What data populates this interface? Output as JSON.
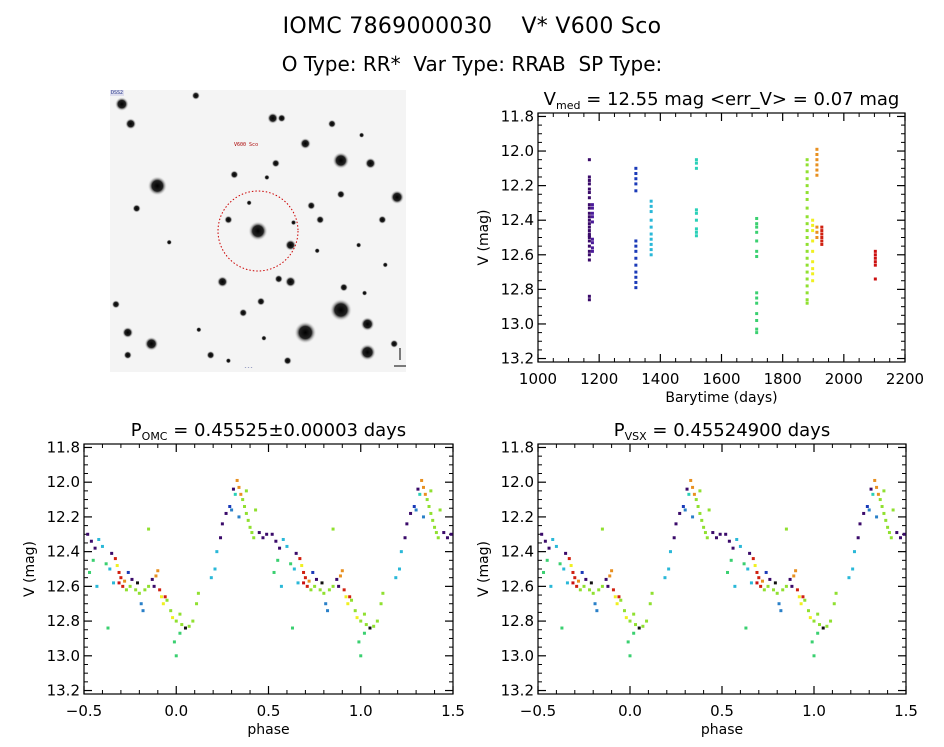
{
  "header": {
    "line1": {
      "catalog_id": "IOMC 7869000030",
      "star_name": "V* V600 Sco"
    },
    "line2": {
      "otype": "O Type: RR*",
      "vartype": "Var Type: RRAB",
      "sptype": "SP Type:"
    }
  },
  "finder_chart": {
    "description": "Sky image centered on target with dashed aperture circle",
    "circle_color": "#cc0000",
    "stars": [
      [
        0.5,
        0.5,
        7
      ],
      [
        0.16,
        0.34,
        7
      ],
      [
        0.78,
        0.78,
        8
      ],
      [
        0.66,
        0.86,
        8
      ],
      [
        0.87,
        0.93,
        6
      ],
      [
        0.78,
        0.25,
        6
      ],
      [
        0.87,
        0.83,
        5
      ],
      [
        0.14,
        0.9,
        5
      ],
      [
        0.04,
        0.05,
        5
      ],
      [
        0.55,
        0.1,
        4
      ],
      [
        0.66,
        0.19,
        4
      ],
      [
        0.88,
        0.26,
        4
      ],
      [
        0.61,
        0.55,
        4
      ],
      [
        0.61,
        0.68,
        4
      ],
      [
        0.38,
        0.68,
        4
      ],
      [
        0.57,
        0.67,
        3
      ],
      [
        0.4,
        0.46,
        3
      ],
      [
        0.07,
        0.12,
        4
      ],
      [
        0.29,
        0.02,
        3
      ],
      [
        0.75,
        0.12,
        3
      ],
      [
        0.42,
        0.3,
        3
      ],
      [
        0.68,
        0.41,
        3
      ],
      [
        0.78,
        0.37,
        3
      ],
      [
        0.92,
        0.46,
        3
      ],
      [
        0.79,
        0.7,
        3
      ],
      [
        0.97,
        0.38,
        5
      ],
      [
        0.09,
        0.42,
        3
      ],
      [
        0.06,
        0.94,
        3
      ],
      [
        0.34,
        0.94,
        3
      ],
      [
        0.51,
        0.75,
        3
      ],
      [
        0.45,
        0.79,
        3
      ],
      [
        0.02,
        0.76,
        3
      ],
      [
        0.06,
        0.86,
        4
      ],
      [
        0.96,
        0.9,
        3
      ],
      [
        0.71,
        0.46,
        3
      ],
      [
        0.56,
        0.26,
        3
      ],
      [
        0.53,
        0.31,
        2
      ],
      [
        0.58,
        0.1,
        3
      ],
      [
        0.47,
        0.4,
        2
      ],
      [
        0.62,
        0.47,
        2
      ],
      [
        0.7,
        0.57,
        2
      ],
      [
        0.85,
        0.16,
        2
      ],
      [
        0.84,
        0.55,
        2
      ],
      [
        0.86,
        0.72,
        2
      ],
      [
        0.3,
        0.85,
        2
      ],
      [
        0.4,
        0.96,
        2
      ],
      [
        0.6,
        0.96,
        3
      ],
      [
        0.52,
        0.88,
        2
      ],
      [
        0.93,
        0.62,
        2
      ],
      [
        0.2,
        0.54,
        2
      ]
    ],
    "labels": [
      "corner-label-top-left",
      "target-label",
      "corner-label-bottom-left",
      "scale-label-bottom",
      "orientation-label"
    ]
  },
  "chart_data": [
    {
      "type": "scatter",
      "id": "lightcurve",
      "title": "V_med = 12.55 mag <err_V> = 0.07 mag",
      "title_main": "V",
      "title_sub": "med",
      "title_rest": " = 12.55 mag <err_V> = 0.07 mag",
      "xlabel": "Barytime (days)",
      "ylabel": "V (mag)",
      "xlim": [
        1000,
        2200
      ],
      "ylim": [
        13.22,
        11.78
      ],
      "y_inverted": true,
      "xticks": [
        1000,
        1200,
        1400,
        1600,
        1800,
        2000,
        2200
      ],
      "yticks": [
        11.8,
        12.0,
        12.2,
        12.4,
        12.6,
        12.8,
        13.0,
        13.2
      ],
      "ytick_labels": [
        "11.8",
        "12.0",
        "12.2",
        "12.4",
        "12.6",
        "12.8",
        "13.0",
        "13.2"
      ],
      "grid": false,
      "series": [
        {
          "name": "season-1",
          "color": "#3a0a6a",
          "x": 1168,
          "ymin": 12.04,
          "ymax": 12.86,
          "points": [
            12.05,
            12.15,
            12.17,
            12.19,
            12.22,
            12.24,
            12.27,
            12.31,
            12.33,
            12.36,
            12.38,
            12.4,
            12.42,
            12.44,
            12.46,
            12.48,
            12.49,
            12.5,
            12.52,
            12.55,
            12.58,
            12.6,
            12.63,
            12.84,
            12.86
          ]
        },
        {
          "name": "season-1b",
          "color": "#4b1a9a",
          "x": 1178,
          "ymin": 12.3,
          "ymax": 12.58,
          "points": [
            12.31,
            12.33,
            12.36,
            12.38,
            12.41,
            12.51,
            12.53,
            12.56,
            12.58
          ]
        },
        {
          "name": "season-2",
          "color": "#1a3ab8",
          "x": 1320,
          "ymin": 12.1,
          "ymax": 12.79,
          "points": [
            12.1,
            12.13,
            12.16,
            12.19,
            12.23,
            12.52,
            12.55,
            12.58,
            12.62,
            12.66,
            12.7,
            12.73,
            12.76,
            12.79
          ]
        },
        {
          "name": "season-3",
          "color": "#2ab8d8",
          "x": 1370,
          "ymin": 12.29,
          "ymax": 12.6,
          "points": [
            12.29,
            12.32,
            12.35,
            12.4,
            12.44,
            12.48,
            12.51,
            12.54,
            12.57,
            12.6
          ]
        },
        {
          "name": "season-4",
          "color": "#2ad0b8",
          "x": 1518,
          "ymin": 12.05,
          "ymax": 12.49,
          "points": [
            12.05,
            12.07,
            12.1,
            12.34,
            12.36,
            12.4,
            12.45,
            12.47,
            12.49
          ]
        },
        {
          "name": "season-5",
          "color": "#3ad070",
          "x": 1715,
          "ymin": 12.39,
          "ymax": 13.05,
          "points": [
            12.39,
            12.42,
            12.44,
            12.47,
            12.52,
            12.58,
            12.61,
            12.82,
            12.85,
            12.88,
            12.94,
            12.98,
            13.03,
            13.05
          ]
        },
        {
          "name": "season-6",
          "color": "#90e030",
          "x": 1880,
          "ymin": 12.05,
          "ymax": 12.88,
          "points": [
            12.05,
            12.08,
            12.12,
            12.16,
            12.2,
            12.24,
            12.28,
            12.33,
            12.38,
            12.42,
            12.46,
            12.5,
            12.54,
            12.58,
            12.62,
            12.66,
            12.7,
            12.74,
            12.78,
            12.82,
            12.86,
            12.88
          ]
        },
        {
          "name": "season-7",
          "color": "#f0f020",
          "x": 1898,
          "ymin": 12.4,
          "ymax": 12.75,
          "points": [
            12.4,
            12.43,
            12.46,
            12.52,
            12.58,
            12.64,
            12.68,
            12.71,
            12.75
          ]
        },
        {
          "name": "season-8",
          "color": "#e89020",
          "x": 1912,
          "ymin": 11.99,
          "ymax": 12.51,
          "points": [
            11.99,
            12.02,
            12.05,
            12.08,
            12.11,
            12.14,
            12.44,
            12.47,
            12.5
          ]
        },
        {
          "name": "season-9",
          "color": "#d02010",
          "x": 1928,
          "ymin": 12.44,
          "ymax": 12.54,
          "points": [
            12.44,
            12.46,
            12.48,
            12.5,
            12.52,
            12.54
          ]
        },
        {
          "name": "season-10",
          "color": "#cc1010",
          "x": 2103,
          "ymin": 12.58,
          "ymax": 12.74,
          "points": [
            12.58,
            12.6,
            12.62,
            12.64,
            12.66,
            12.74
          ]
        }
      ]
    },
    {
      "type": "scatter",
      "id": "phase-omc",
      "title_main": "P",
      "title_sub": "OMC",
      "title_rest": " = 0.45525±0.00003 days",
      "period_days": 0.45525,
      "period_err_days": 3e-05,
      "xlabel": "phase",
      "ylabel": "V (mag)",
      "xlim": [
        -0.5,
        1.5
      ],
      "ylim": [
        13.22,
        11.78
      ],
      "y_inverted": true,
      "xticks": [
        -0.5,
        0.0,
        0.5,
        1.0,
        1.5
      ],
      "xtick_labels": [
        "−0.5",
        "0.0",
        "0.5",
        "1.0",
        "1.5"
      ],
      "yticks": [
        11.8,
        12.0,
        12.2,
        12.4,
        12.6,
        12.8,
        13.0,
        13.2
      ],
      "ytick_labels": [
        "11.8",
        "12.0",
        "12.2",
        "12.4",
        "12.6",
        "12.8",
        "13.0",
        "13.2"
      ],
      "grid": false,
      "curve": {
        "note": "RRab light curve folded; maximum ~12.0 near phase 0.35, minimum ~12.85 near phase 0.12; each series point listed for phases 0..1 and repeated at +/-1",
        "points": [
          [
            -0.48,
            12.3,
            "#3a0a6a"
          ],
          [
            -0.46,
            12.34,
            "#3a0a6a"
          ],
          [
            -0.44,
            12.38,
            "#3a0a6a"
          ],
          [
            -0.42,
            12.33,
            "#2ab8d8"
          ],
          [
            -0.4,
            12.37,
            "#2ab8d8"
          ],
          [
            -0.45,
            12.45,
            "#3ad070"
          ],
          [
            -0.47,
            12.52,
            "#3ad070"
          ],
          [
            -0.43,
            12.6,
            "#2ab8d8"
          ],
          [
            -0.38,
            12.47,
            "#3ad070"
          ],
          [
            -0.36,
            12.5,
            "#2ab8d8"
          ],
          [
            -0.34,
            12.58,
            "#2ab8d8"
          ],
          [
            -0.35,
            12.41,
            "#3a0a6a"
          ],
          [
            -0.33,
            12.44,
            "#d02010"
          ],
          [
            -0.32,
            12.48,
            "#f0f020"
          ],
          [
            -0.31,
            12.52,
            "#d02010"
          ],
          [
            -0.3,
            12.55,
            "#d02010"
          ],
          [
            -0.29,
            12.6,
            "#d02010"
          ],
          [
            -0.31,
            12.58,
            "#cc1010"
          ],
          [
            -0.28,
            12.57,
            "#e89020"
          ],
          [
            -0.27,
            12.62,
            "#90e030"
          ],
          [
            -0.25,
            12.6,
            "#90e030"
          ],
          [
            -0.26,
            12.52,
            "#1a3ab8"
          ],
          [
            -0.24,
            12.56,
            "#3a0a6a"
          ],
          [
            -0.22,
            12.62,
            "#90e030"
          ],
          [
            -0.21,
            12.58,
            "#111111"
          ],
          [
            -0.2,
            12.64,
            "#90e030"
          ],
          [
            -0.19,
            12.7,
            "#2a80c8"
          ],
          [
            -0.18,
            12.74,
            "#2a80c8"
          ],
          [
            -0.17,
            12.62,
            "#90e030"
          ],
          [
            -0.15,
            12.6,
            "#90e030"
          ],
          [
            -0.13,
            12.56,
            "#3a0a6a"
          ],
          [
            -0.12,
            12.6,
            "#3a0a6a"
          ],
          [
            -0.11,
            12.54,
            "#e89020"
          ],
          [
            -0.1,
            12.51,
            "#e89020"
          ],
          [
            -0.09,
            12.62,
            "#d02010"
          ],
          [
            -0.08,
            12.66,
            "#f0f020"
          ],
          [
            -0.07,
            12.7,
            "#f0f020"
          ],
          [
            -0.06,
            12.66,
            "#d02010"
          ],
          [
            -0.05,
            12.68,
            "#90e030"
          ],
          [
            -0.03,
            12.74,
            "#90e030"
          ],
          [
            -0.02,
            12.78,
            "#f0f020"
          ],
          [
            0.0,
            12.8,
            "#90e030"
          ],
          [
            0.02,
            12.76,
            "#90e030"
          ],
          [
            0.03,
            12.82,
            "#90e030"
          ],
          [
            0.05,
            12.84,
            "#111111"
          ],
          [
            0.07,
            12.83,
            "#90e030"
          ],
          [
            0.09,
            12.8,
            "#90e030"
          ],
          [
            0.11,
            12.7,
            "#90e030"
          ],
          [
            0.12,
            12.64,
            "#90e030"
          ],
          [
            -0.37,
            12.84,
            "#3ad070"
          ],
          [
            -0.01,
            12.92,
            "#3ad070"
          ],
          [
            0.0,
            13.0,
            "#3ad070"
          ],
          [
            -0.15,
            12.27,
            "#90e030"
          ],
          [
            0.02,
            12.87,
            "#3ad070"
          ],
          [
            0.19,
            12.55,
            "#2ab8d8"
          ],
          [
            0.21,
            12.5,
            "#2ab8d8"
          ],
          [
            0.22,
            12.4,
            "#2ab8d8"
          ],
          [
            0.24,
            12.32,
            "#3a0a6a"
          ],
          [
            0.25,
            12.24,
            "#3a0a6a"
          ],
          [
            0.27,
            12.18,
            "#3a0a6a"
          ],
          [
            0.29,
            12.14,
            "#1a3ab8"
          ],
          [
            0.3,
            12.16,
            "#2a80c8"
          ],
          [
            0.31,
            12.04,
            "#3a0a6a"
          ],
          [
            0.32,
            12.07,
            "#2ad0b8"
          ],
          [
            0.33,
            11.99,
            "#e89020"
          ],
          [
            0.34,
            12.03,
            "#e89020"
          ],
          [
            0.35,
            12.07,
            "#e89020"
          ],
          [
            0.36,
            12.1,
            "#90e030"
          ],
          [
            0.37,
            12.14,
            "#90e030"
          ],
          [
            0.38,
            12.18,
            "#90e030"
          ],
          [
            0.39,
            12.22,
            "#90e030"
          ],
          [
            0.4,
            12.26,
            "#90e030"
          ],
          [
            0.41,
            12.29,
            "#90e030"
          ],
          [
            0.42,
            12.32,
            "#90e030"
          ],
          [
            0.43,
            12.16,
            "#90e030"
          ],
          [
            0.38,
            12.05,
            "#90e030"
          ],
          [
            0.34,
            12.2,
            "#2a80c8"
          ],
          [
            0.45,
            12.29,
            "#3a0a6a"
          ],
          [
            0.47,
            12.32,
            "#3a0a6a"
          ],
          [
            0.49,
            12.3,
            "#3a0a6a"
          ]
        ]
      }
    },
    {
      "type": "scatter",
      "id": "phase-vsx",
      "title_main": "P",
      "title_sub": "VSX",
      "title_rest": " = 0.45524900 days",
      "period_days": 0.455249,
      "xlabel": "phase",
      "ylabel": "V (mag)",
      "xlim": [
        -0.5,
        1.5
      ],
      "ylim": [
        13.22,
        11.78
      ],
      "y_inverted": true,
      "xticks": [
        -0.5,
        0.0,
        0.5,
        1.0,
        1.5
      ],
      "xtick_labels": [
        "−0.5",
        "0.0",
        "0.5",
        "1.0",
        "1.5"
      ],
      "yticks": [
        11.8,
        12.0,
        12.2,
        12.4,
        12.6,
        12.8,
        13.0,
        13.2
      ],
      "ytick_labels": [
        "11.8",
        "12.0",
        "12.2",
        "12.4",
        "12.6",
        "12.8",
        "13.0",
        "13.2"
      ],
      "grid": false,
      "curve_ref": "phase-omc"
    }
  ]
}
